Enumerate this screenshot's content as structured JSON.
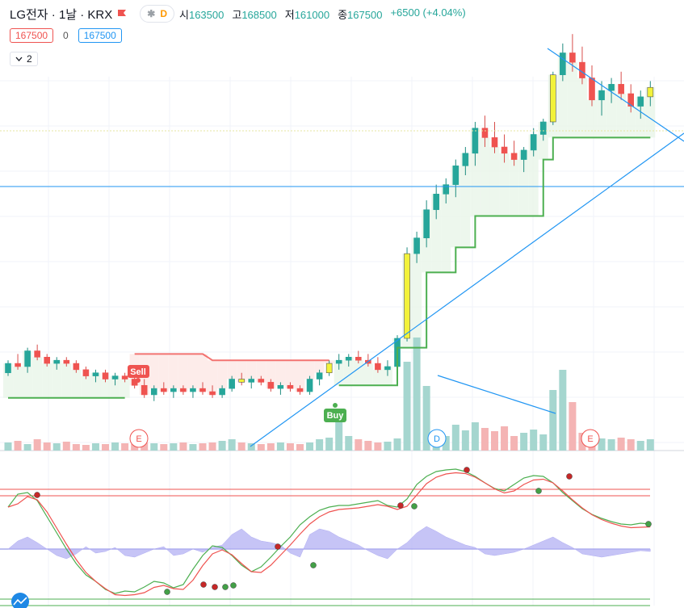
{
  "header": {
    "symbol_title": "LG전자 · 1날 · KRX",
    "favorite_flag_icon": "flag-icon",
    "pill": {
      "icon1": "asterisk-icon",
      "icon2": "D"
    },
    "ohlc": {
      "open_label": "시",
      "open": "163500",
      "high_label": "고",
      "high": "168500",
      "low_label": "저",
      "low": "161000",
      "close_label": "종",
      "close": "167500",
      "change": "+6500 (+4.04%)"
    },
    "price_box_sell": "167500",
    "spread": "0",
    "price_box_buy": "167500",
    "indicators_collapse": {
      "icon": "chevron-down-icon",
      "count": "2"
    }
  },
  "chart": {
    "signals": {
      "sell": "Sell",
      "buy": "Buy"
    },
    "events": {
      "e1": "E",
      "d": "D",
      "e2": "E"
    },
    "colors": {
      "up": "#26a69a",
      "down": "#ef5350",
      "highlight": "#f2f23a",
      "support": "#4caf50",
      "resistance": "#ef5350",
      "trend": "#2196f3"
    }
  },
  "chart_data": {
    "type": "candlestick",
    "series": [
      {
        "name": "price",
        "ohlc": [
          [
            100,
            104,
            99,
            103
          ],
          [
            103,
            106,
            101,
            102
          ],
          [
            102,
            108,
            100,
            107
          ],
          [
            107,
            109,
            104,
            105
          ],
          [
            105,
            106,
            102,
            103
          ],
          [
            103,
            105,
            101,
            104
          ],
          [
            104,
            105,
            102,
            103
          ],
          [
            103,
            104,
            100,
            101
          ],
          [
            101,
            102,
            98,
            99
          ],
          [
            99,
            101,
            97,
            100
          ],
          [
            100,
            101,
            97,
            98
          ],
          [
            98,
            100,
            96,
            99
          ],
          [
            99,
            100,
            97,
            98
          ],
          [
            98,
            99,
            95,
            96
          ],
          [
            96,
            98,
            92,
            93
          ],
          [
            93,
            96,
            91,
            95
          ],
          [
            95,
            97,
            93,
            94
          ],
          [
            94,
            96,
            92,
            95
          ],
          [
            95,
            96,
            93,
            94
          ],
          [
            94,
            96,
            92,
            95
          ],
          [
            95,
            97,
            93,
            94
          ],
          [
            94,
            96,
            92,
            93
          ],
          [
            93,
            96,
            92,
            95
          ],
          [
            95,
            99,
            94,
            98
          ],
          [
            98,
            100,
            96,
            97
          ],
          [
            97,
            99,
            95,
            98
          ],
          [
            98,
            99,
            96,
            97
          ],
          [
            97,
            98,
            94,
            95
          ],
          [
            95,
            97,
            93,
            96
          ],
          [
            96,
            97,
            94,
            95
          ],
          [
            95,
            96,
            93,
            94
          ],
          [
            94,
            99,
            93,
            98
          ],
          [
            98,
            101,
            96,
            100
          ],
          [
            100,
            104,
            99,
            103
          ],
          [
            103,
            106,
            101,
            104
          ],
          [
            104,
            106,
            102,
            105
          ],
          [
            105,
            107,
            103,
            104
          ],
          [
            104,
            106,
            102,
            103
          ],
          [
            103,
            105,
            100,
            101
          ],
          [
            101,
            104,
            99,
            102
          ],
          [
            102,
            112,
            101,
            111
          ],
          [
            111,
            140,
            110,
            138
          ],
          [
            138,
            145,
            135,
            143
          ],
          [
            143,
            155,
            140,
            152
          ],
          [
            152,
            160,
            149,
            157
          ],
          [
            157,
            162,
            154,
            160
          ],
          [
            160,
            168,
            156,
            166
          ],
          [
            166,
            172,
            163,
            170
          ],
          [
            170,
            180,
            166,
            178
          ],
          [
            178,
            182,
            172,
            175
          ],
          [
            175,
            180,
            170,
            172
          ],
          [
            172,
            176,
            167,
            170
          ],
          [
            170,
            174,
            166,
            168
          ],
          [
            168,
            172,
            164,
            171
          ],
          [
            171,
            178,
            169,
            176
          ],
          [
            176,
            181,
            174,
            180
          ],
          [
            180,
            196,
            179,
            195
          ],
          [
            195,
            205,
            193,
            202
          ],
          [
            202,
            208,
            196,
            199
          ],
          [
            199,
            204,
            192,
            194
          ],
          [
            194,
            198,
            185,
            187
          ],
          [
            187,
            193,
            182,
            190
          ],
          [
            190,
            194,
            186,
            192
          ],
          [
            192,
            196,
            187,
            189
          ],
          [
            189,
            192,
            183,
            185
          ],
          [
            185,
            190,
            181,
            188
          ],
          [
            188,
            193,
            185,
            191
          ]
        ]
      }
    ]
  }
}
